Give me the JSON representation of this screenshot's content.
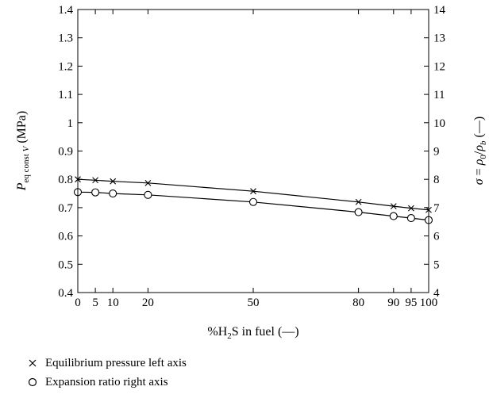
{
  "chart_data": {
    "type": "line",
    "xlabel": "%H2S in fuel (—)",
    "ylabel_left": "Peq const V (MPa)",
    "ylabel_right": "σ = ρ0/ρb (—)",
    "xlim": [
      0,
      100
    ],
    "ylim_left": [
      0.4,
      1.4
    ],
    "ylim_right": [
      4,
      14
    ],
    "x_ticks": [
      0,
      5,
      10,
      20,
      50,
      80,
      90,
      95,
      100
    ],
    "y_left_ticks": [
      "0.4",
      "0.5",
      "0.6",
      "0.7",
      "0.8",
      "0.9",
      "1",
      "1.1",
      "1.2",
      "1.3",
      "1.4"
    ],
    "y_right_ticks": [
      "4",
      "5",
      "6",
      "7",
      "8",
      "9",
      "10",
      "11",
      "12",
      "13",
      "14"
    ],
    "grid": false,
    "legend_position": "bottom",
    "series": [
      {
        "name": "Equilibrium pressure left axis",
        "axis": "left",
        "marker": "x",
        "x": [
          0,
          5,
          10,
          20,
          50,
          80,
          90,
          95,
          100
        ],
        "y": [
          0.8,
          0.797,
          0.793,
          0.787,
          0.758,
          0.72,
          0.705,
          0.698,
          0.692
        ]
      },
      {
        "name": "Expansion ratio right axis",
        "axis": "right",
        "marker": "o",
        "x": [
          0,
          5,
          10,
          20,
          50,
          80,
          90,
          95,
          100
        ],
        "y": [
          7.55,
          7.54,
          7.5,
          7.45,
          7.2,
          6.84,
          6.7,
          6.63,
          6.56
        ]
      }
    ]
  },
  "legend": {
    "items": [
      {
        "marker": "x",
        "label": "Equilibrium pressure left axis"
      },
      {
        "marker": "o",
        "label": "Expansion ratio right axis"
      }
    ]
  }
}
